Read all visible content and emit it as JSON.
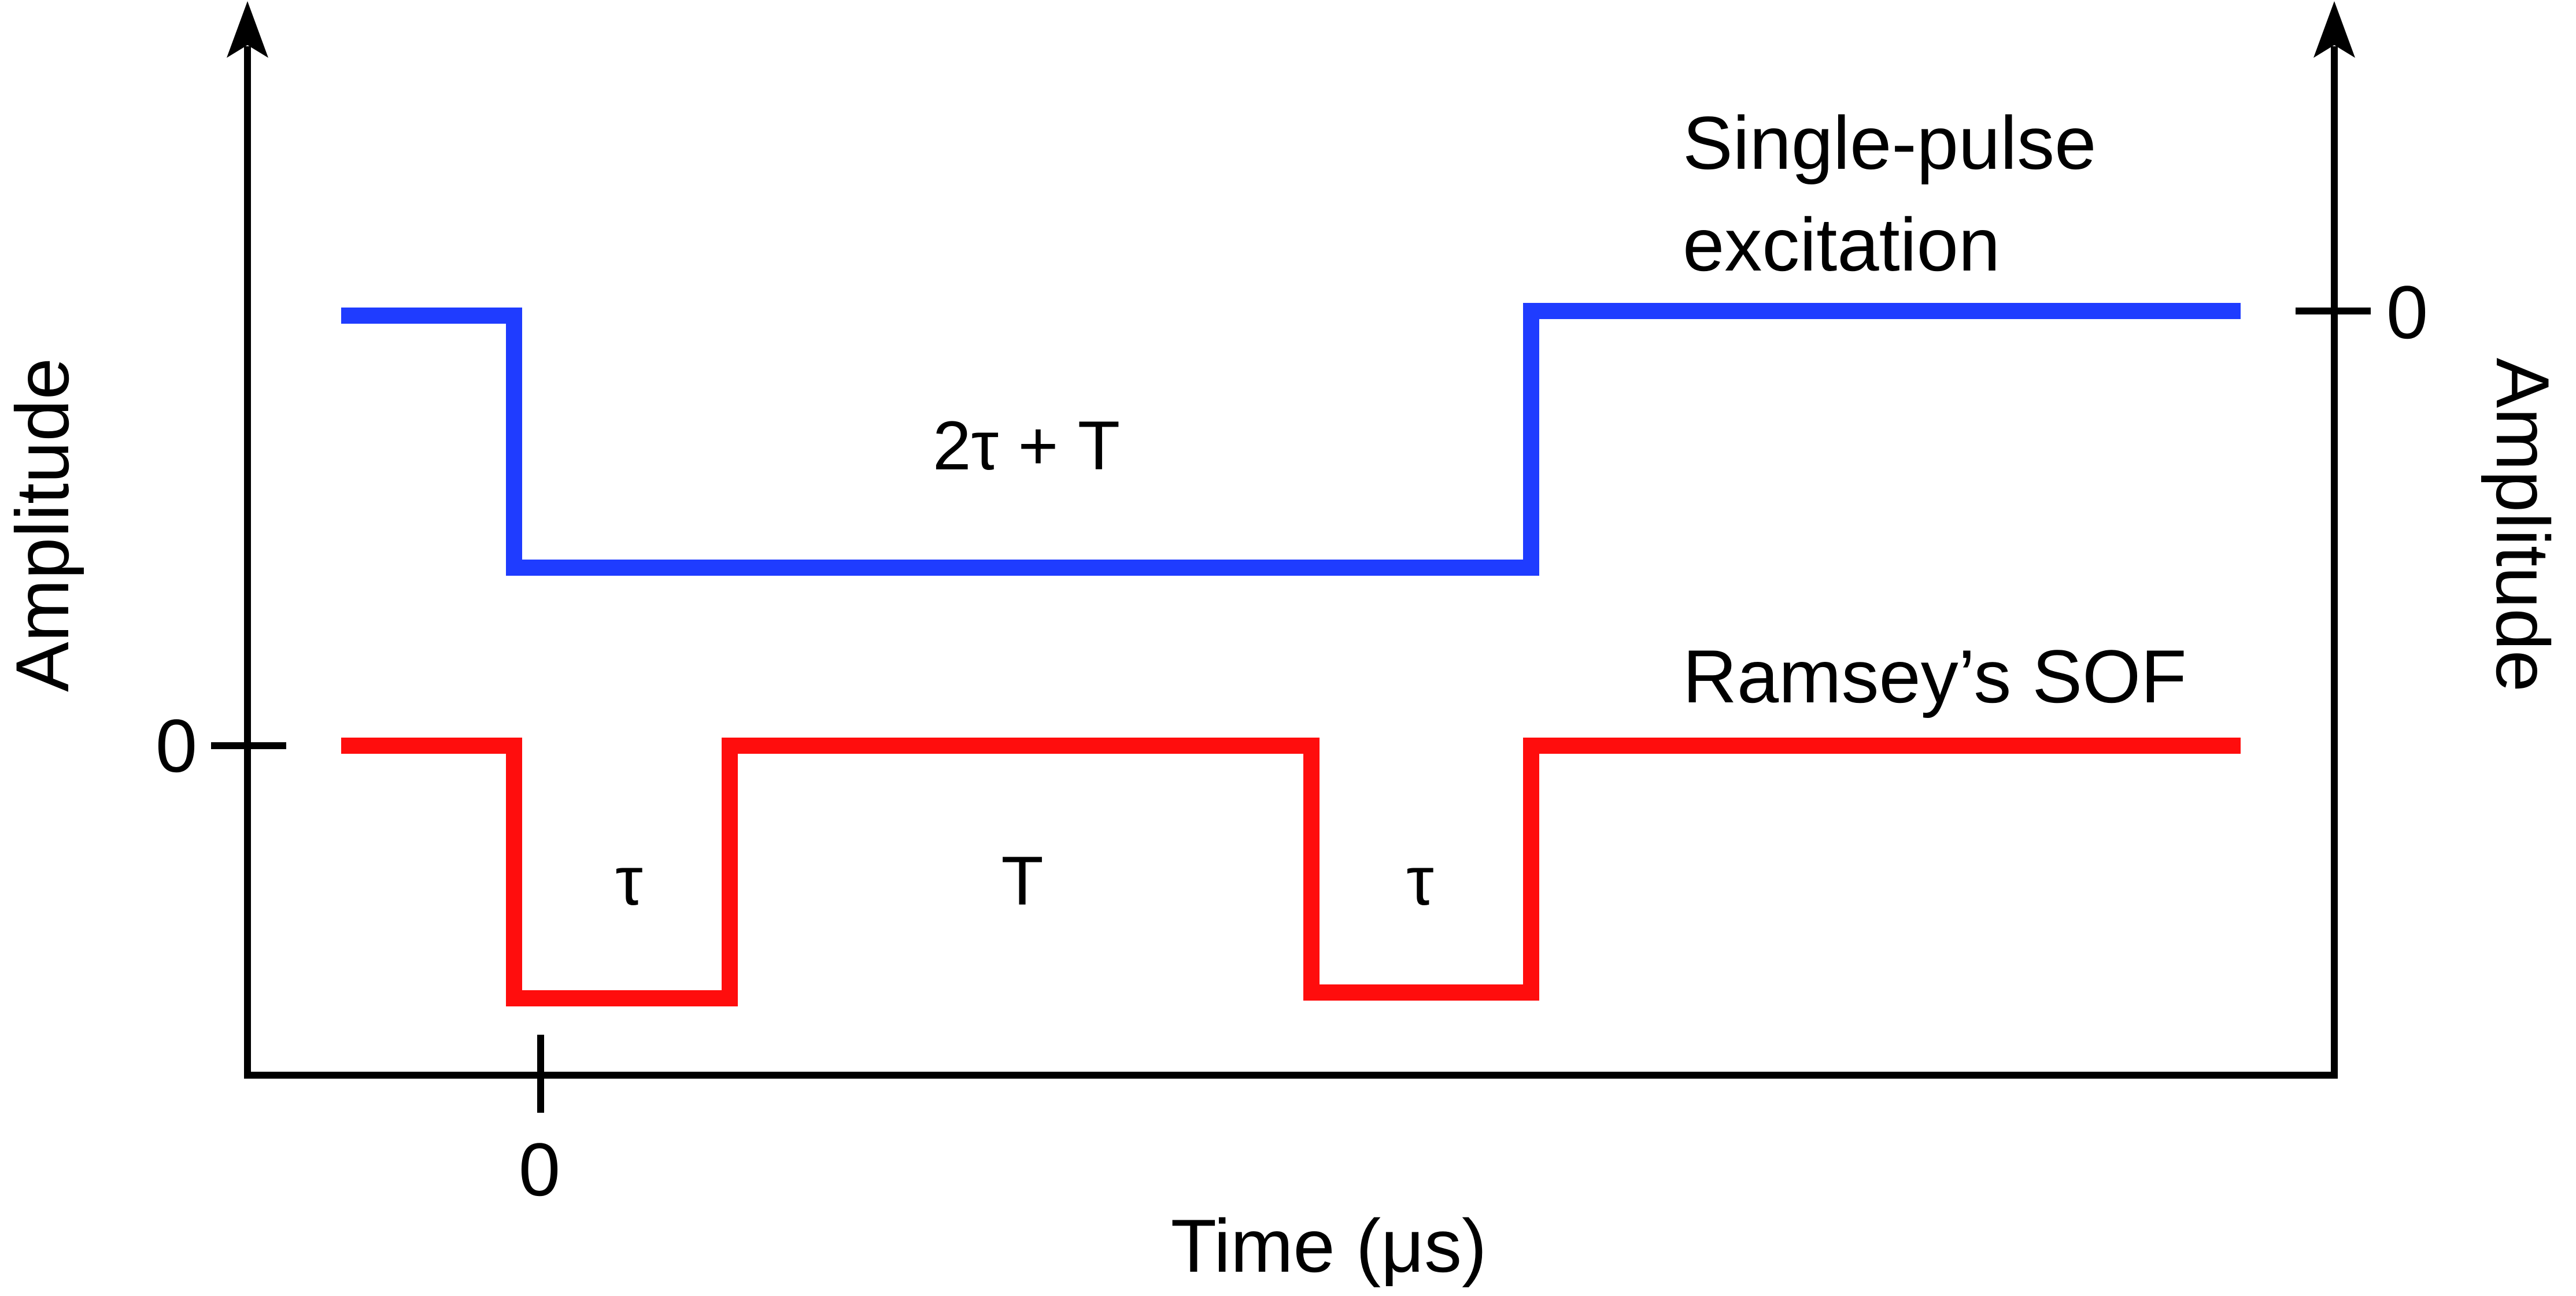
{
  "axes": {
    "left_label": "Amplitude",
    "right_label": "Amplitude",
    "x_label": "Time (μs)",
    "x_zero": "0",
    "left_zero": "0",
    "right_zero": "0"
  },
  "single_pulse": {
    "label_line1": "Single-pulse",
    "label_line2": "excitation",
    "duration_label": "2τ + T",
    "color": "#1f3cff"
  },
  "ramsey_sof": {
    "label": "Ramsey’s SOF",
    "pulse1_label": "τ",
    "gap_label": "T",
    "pulse2_label": "τ",
    "color": "#ff0d0d"
  }
}
